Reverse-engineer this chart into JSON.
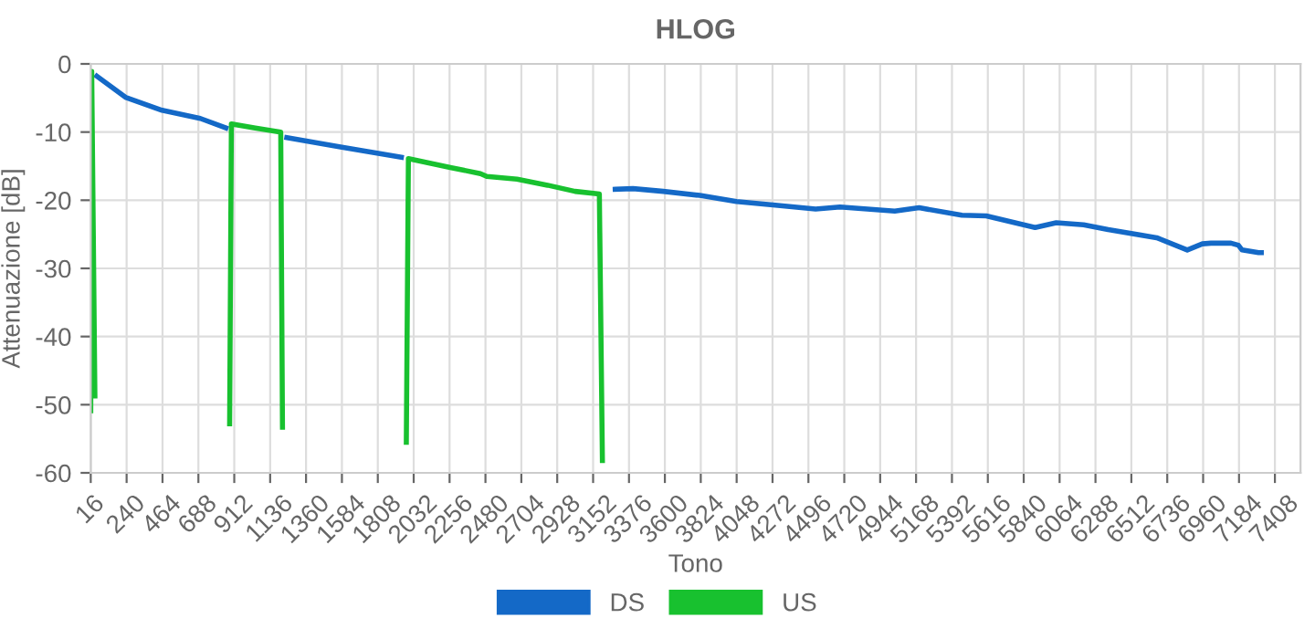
{
  "chart_data": {
    "type": "line",
    "title": "HLOG",
    "xlabel": "Tono",
    "ylabel": "Attenuazione [dB]",
    "xlim": [
      16,
      7568
    ],
    "xticks": [
      16,
      240,
      464,
      688,
      912,
      1136,
      1360,
      1584,
      1808,
      2032,
      2256,
      2480,
      2704,
      2928,
      3152,
      3376,
      3600,
      3824,
      4048,
      4272,
      4496,
      4720,
      4944,
      5168,
      5392,
      5616,
      5840,
      6064,
      6288,
      6512,
      6736,
      6960,
      7184,
      7408
    ],
    "ylim": [
      -60,
      0
    ],
    "yticks": [
      -60,
      -50,
      -40,
      -30,
      -20,
      -10,
      0
    ],
    "grid": true,
    "legend": "bottom",
    "marker": "none",
    "line_style": "solid",
    "series": [
      {
        "name": "DS",
        "color": "#1469c7",
        "x": [
          54,
          233,
          461,
          700,
          860,
          900,
          1240,
          1575,
          1955,
          2000,
          3290,
          3401,
          3590,
          3818,
          4047,
          4275,
          4541,
          4693,
          5035,
          5187,
          5454,
          5606,
          5911,
          6043,
          6214,
          6367,
          6670,
          6861,
          6955,
          7009,
          7054,
          7100,
          7134,
          7180,
          7203,
          7306,
          7323
        ],
        "values": [
          -1.8,
          -4.9,
          -6.8,
          -8.0,
          -9.4,
          null,
          -10.8,
          -12.2,
          -13.7,
          null,
          -18.4,
          -18.3,
          -18.7,
          -19.3,
          -20.2,
          -20.7,
          -21.3,
          -21.0,
          -21.6,
          -21.1,
          -22.2,
          -22.3,
          -24.0,
          -23.3,
          -23.6,
          -24.3,
          -25.5,
          -27.3,
          -26.4,
          -26.3,
          -26.3,
          -26.3,
          -26.3,
          -26.6,
          -27.3,
          -27.7,
          -27.7
        ]
      },
      {
        "name": "US",
        "color": "#18c12f",
        "x": [
          16,
          22,
          42,
          400,
          883,
          894,
          1043,
          1202,
          1213,
          1600,
          1986,
          1999,
          2260,
          2449,
          2488,
          2677,
          2868,
          3039,
          3191,
          3210
        ],
        "values": [
          -50.9,
          -1.1,
          -48.7,
          null,
          -52.8,
          -8.8,
          -9.4,
          -10.0,
          -53.3,
          null,
          -55.5,
          -13.9,
          -15.2,
          -16.1,
          -16.5,
          -16.9,
          -17.8,
          -18.7,
          -19.1,
          -58.2
        ]
      }
    ]
  }
}
